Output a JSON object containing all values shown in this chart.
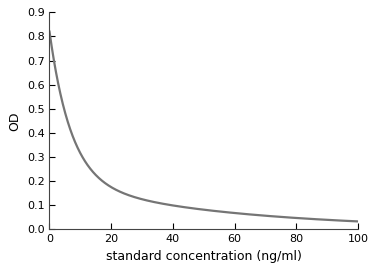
{
  "title": "",
  "xlabel": "standard concentration (ng/ml)",
  "ylabel": "OD",
  "xlim": [
    0,
    100
  ],
  "ylim": [
    0,
    0.9
  ],
  "xticks": [
    0,
    20,
    40,
    60,
    80,
    100
  ],
  "yticks": [
    0,
    0.1,
    0.2,
    0.3,
    0.4,
    0.5,
    0.6,
    0.7,
    0.8,
    0.9
  ],
  "curve_color": "#757575",
  "curve_linewidth": 1.6,
  "background_color": "#ffffff",
  "curve_A1": 0.62,
  "curve_t1": 7.0,
  "curve_A2": 0.2,
  "curve_t2": 55.0,
  "figsize": [
    3.77,
    2.71
  ],
  "dpi": 100
}
